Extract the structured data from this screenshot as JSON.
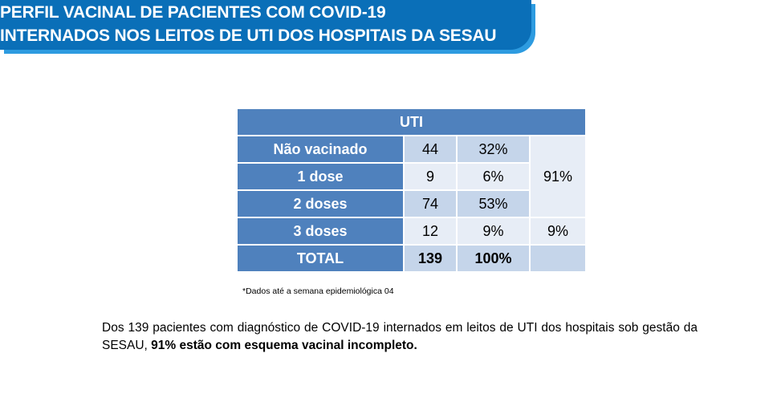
{
  "header": {
    "title_line1": "PERFIL VACINAL DE PACIENTES COM COVID-19",
    "title_line2": "INTERNADOS NOS LEITOS DE UTI DOS HOSPITAIS DA SESAU"
  },
  "table": {
    "header": "UTI",
    "rows": [
      {
        "label": "Não vacinado",
        "count": "44",
        "percent": "32%"
      },
      {
        "label": "1 dose",
        "count": "9",
        "percent": "6%"
      },
      {
        "label": "2 doses",
        "count": "74",
        "percent": "53%"
      },
      {
        "label": "3 doses",
        "count": "12",
        "percent": "9%"
      }
    ],
    "group_incomplete": "91%",
    "group_complete": "9%",
    "total": {
      "label": "TOTAL",
      "count": "139",
      "percent": "100%"
    }
  },
  "footnote": "*Dados até a semana epidemiológica 04",
  "summary": {
    "text_before": "Dos 139 pacientes com diagnóstico de COVID-19 internados em leitos de UTI dos hospitais sob gestão da SESAU, ",
    "text_bold": "91% estão com esquema vacinal incompleto."
  },
  "colors": {
    "banner": "#0a6fb8",
    "table_header": "#4f81bd",
    "cell_dark": "#c5d5ea",
    "cell_light": "#e7edf6"
  }
}
